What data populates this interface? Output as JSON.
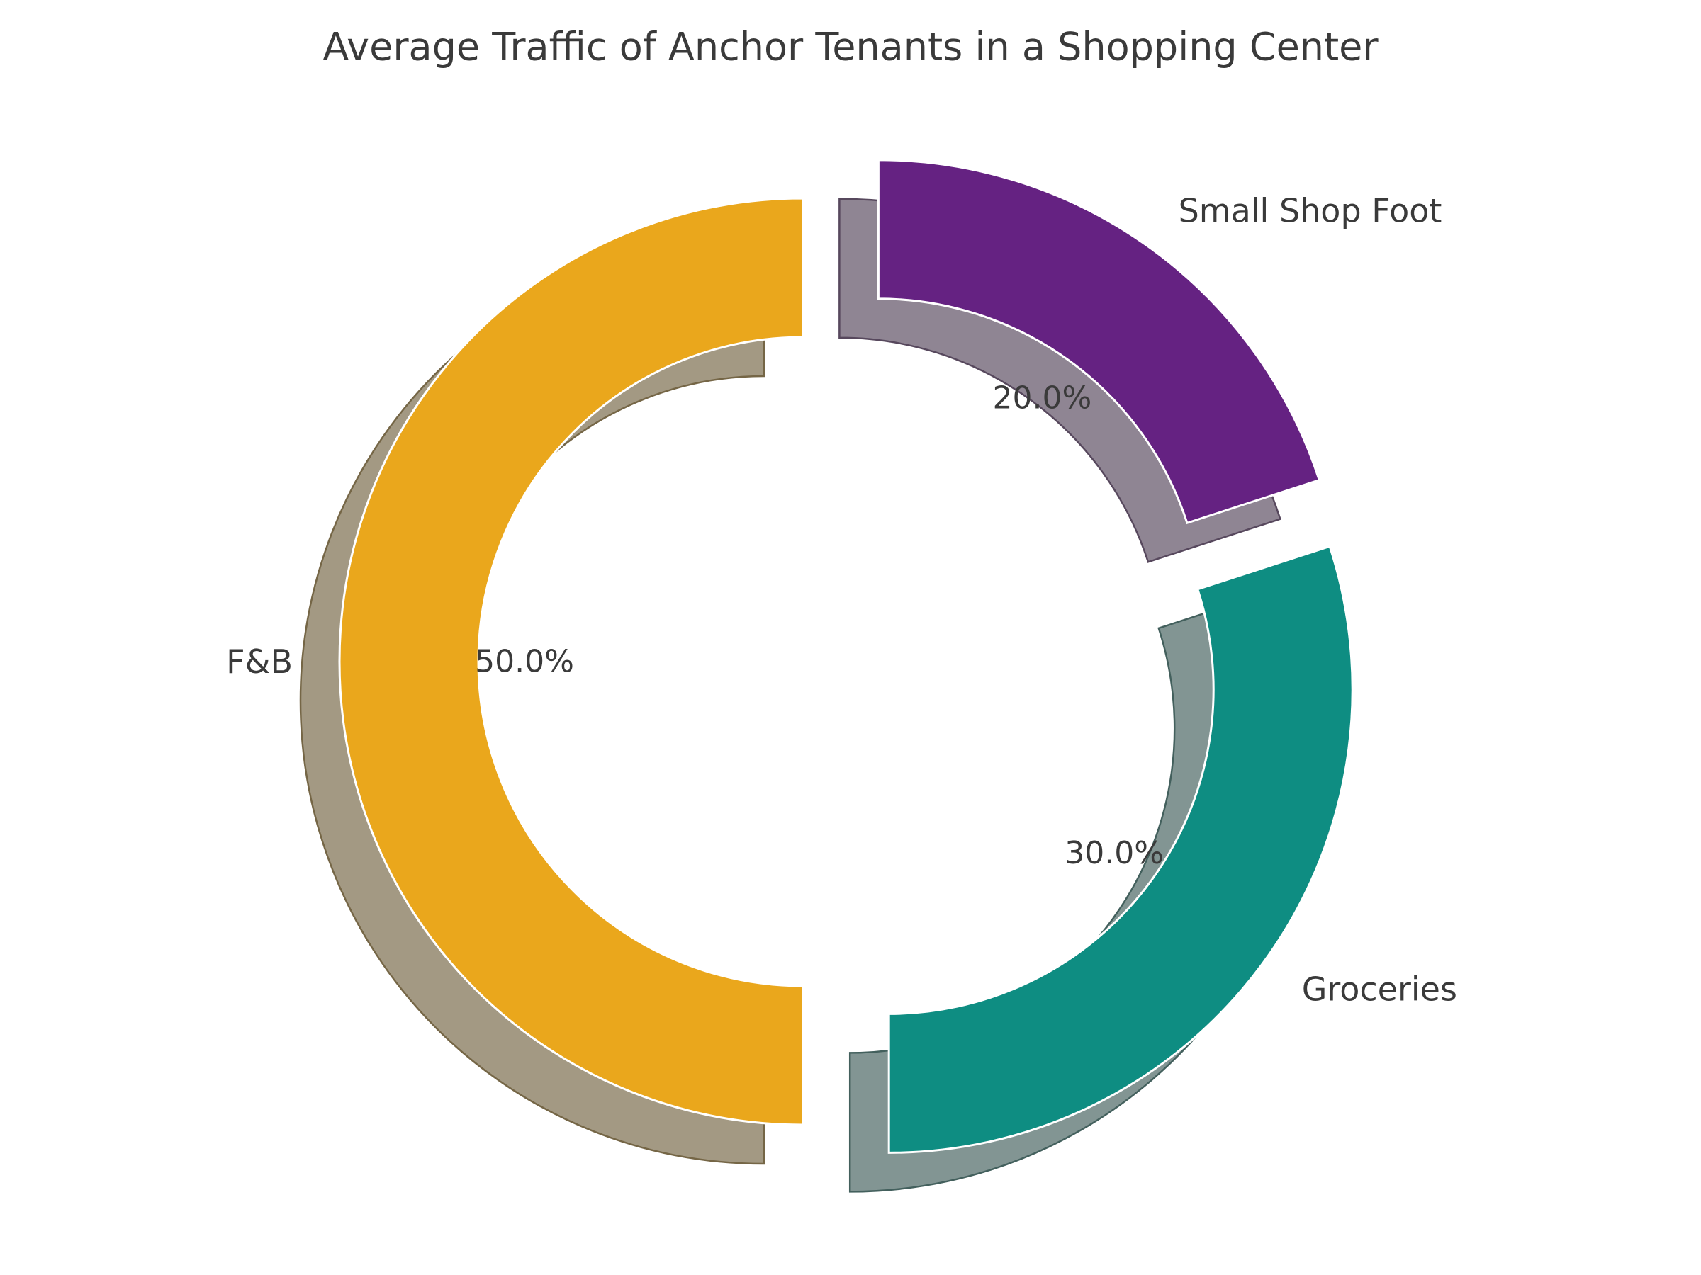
{
  "chart_data": {
    "type": "pie",
    "subtype": "donut",
    "title": "Average Traffic of Anchor Tenants in a Shopping Center",
    "start_angle": 90,
    "counterclock": true,
    "donut_hole": true,
    "shadow": true,
    "exploded": true,
    "legend": "none",
    "grid": "off",
    "text_color": "#3a3a3a",
    "background_color": "#ffffff",
    "wedge_edge_color": "#ffffff",
    "slices": [
      {
        "label": "F&B",
        "value": 50,
        "pct_label": "50.0%",
        "color": "#EAA71C",
        "shadow_color": "#A39983",
        "shadow_edge_color": "#756646"
      },
      {
        "label": "Groceries",
        "value": 30,
        "pct_label": "30.0%",
        "color": "#0E8D82",
        "shadow_color": "#829593",
        "shadow_edge_color": "#43605D"
      },
      {
        "label": "Small Shop Foot",
        "value": 20,
        "pct_label": "20.0%",
        "color": "#652282",
        "shadow_color": "#8F8593",
        "shadow_edge_color": "#57485D"
      }
    ]
  }
}
